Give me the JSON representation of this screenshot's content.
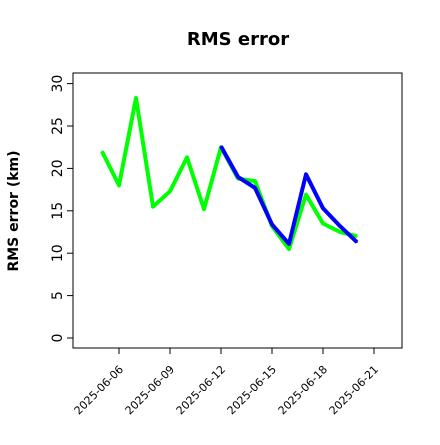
{
  "chart_data": {
    "type": "line",
    "title": "RMS error",
    "xlabel": "",
    "ylabel": "RMS error (km)",
    "ylim": [
      0,
      30
    ],
    "yticks": [
      0,
      5,
      10,
      15,
      20,
      25,
      30
    ],
    "xticks": [
      "2025-06-06",
      "2025-06-09",
      "2025-06-12",
      "2025-06-15",
      "2025-06-18",
      "2025-06-21"
    ],
    "highlight_tick_color": "#1a8a1a",
    "highlight_tick": "2025-06-12",
    "grid": false,
    "series": [
      {
        "color": "#00ff00",
        "points": [
          {
            "x": "2025-06-05",
            "y": 22.0
          },
          {
            "x": "2025-06-06",
            "y": 18.0
          },
          {
            "x": "2025-06-07",
            "y": 28.3
          },
          {
            "x": "2025-06-08",
            "y": 15.5
          },
          {
            "x": "2025-06-09",
            "y": 17.3
          },
          {
            "x": "2025-06-10",
            "y": 21.3
          },
          {
            "x": "2025-06-11",
            "y": 15.2
          },
          {
            "x": "2025-06-12",
            "y": 22.5
          },
          {
            "x": "2025-06-13",
            "y": 18.8
          },
          {
            "x": "2025-06-14",
            "y": 18.5
          },
          {
            "x": "2025-06-15",
            "y": 13.2
          },
          {
            "x": "2025-06-16",
            "y": 10.5
          },
          {
            "x": "2025-06-17",
            "y": 16.9
          },
          {
            "x": "2025-06-18",
            "y": 13.5
          },
          {
            "x": "2025-06-19",
            "y": 12.5
          },
          {
            "x": "2025-06-20",
            "y": 12.0
          }
        ]
      },
      {
        "color": "#0000ff",
        "points": [
          {
            "x": "2025-06-12",
            "y": 22.6
          },
          {
            "x": "2025-06-13",
            "y": 19.0
          },
          {
            "x": "2025-06-14",
            "y": 17.7
          },
          {
            "x": "2025-06-15",
            "y": 13.4
          },
          {
            "x": "2025-06-16",
            "y": 11.1
          },
          {
            "x": "2025-06-17",
            "y": 19.3
          },
          {
            "x": "2025-06-18",
            "y": 15.3
          },
          {
            "x": "2025-06-19",
            "y": 13.2
          },
          {
            "x": "2025-06-20",
            "y": 11.3
          }
        ]
      }
    ]
  }
}
